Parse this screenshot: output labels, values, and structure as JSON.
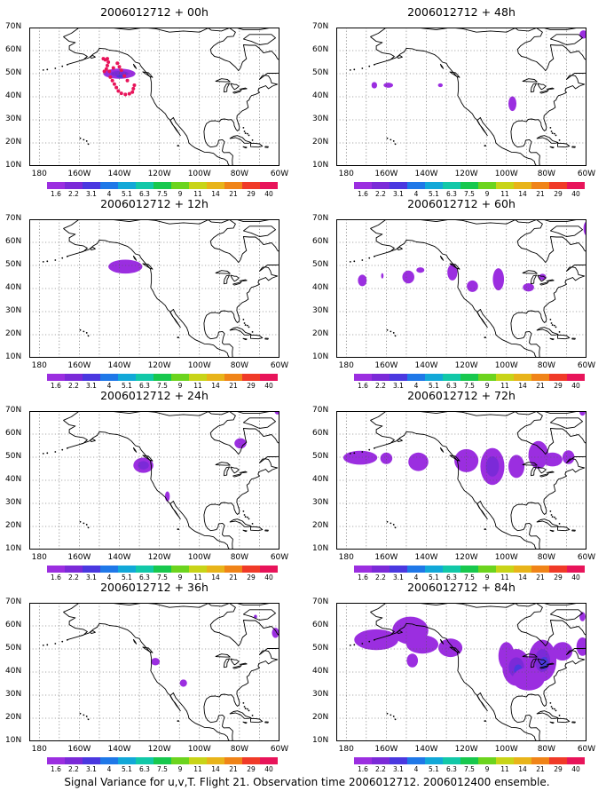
{
  "caption": "Signal Variance for u,v,T. Flight 21. Observation time 2006012712. 2006012400 ensemble.",
  "lat_labels": [
    "70N",
    "60N",
    "50N",
    "40N",
    "30N",
    "20N",
    "10N"
  ],
  "lon_labels": [
    "180",
    "160W",
    "140W",
    "120W",
    "100W",
    "80W",
    "60W"
  ],
  "colorbar": {
    "labels": [
      "1.6",
      "2.2",
      "3.1",
      "4",
      "5.1",
      "6.3",
      "7.5",
      "9",
      "11",
      "14",
      "21",
      "29",
      "40"
    ],
    "colors": [
      "#9b2ee0",
      "#7b2ad8",
      "#4a38e0",
      "#1f78e8",
      "#12a8d8",
      "#12c8a8",
      "#18c84e",
      "#6cd41e",
      "#c8d418",
      "#e8b41a",
      "#f08418",
      "#f03a28",
      "#e8145a"
    ]
  },
  "panels": [
    {
      "id": "p00",
      "title": "2006012712 + 00h"
    },
    {
      "id": "p48",
      "title": "2006012712 + 48h"
    },
    {
      "id": "p12",
      "title": "2006012712 + 12h"
    },
    {
      "id": "p60",
      "title": "2006012712 + 60h"
    },
    {
      "id": "p24",
      "title": "2006012712 + 24h"
    },
    {
      "id": "p72",
      "title": "2006012712 + 72h"
    },
    {
      "id": "p36",
      "title": "2006012712 + 36h"
    },
    {
      "id": "p84",
      "title": "2006012712 + 84h"
    }
  ],
  "flight_track_symbol": "magenta-dot",
  "projection": {
    "lon_range": [
      "180",
      "60W"
    ],
    "lat_range": [
      "10N",
      "70N"
    ]
  }
}
